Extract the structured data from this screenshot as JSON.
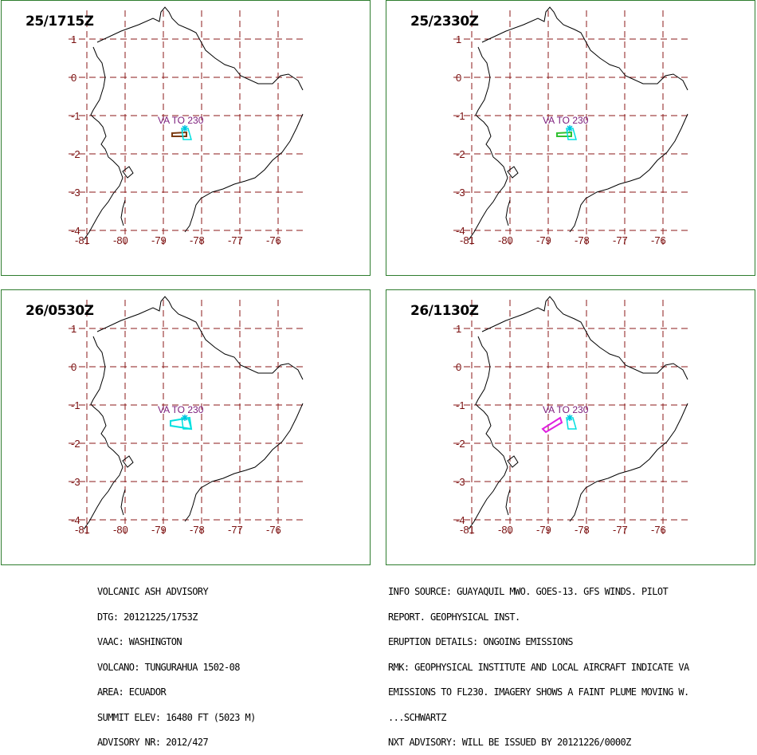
{
  "panels": [
    {
      "time": "25/1715Z",
      "plume_colors": [
        "#7a3a10",
        "#00e0e0"
      ],
      "va_label": "VA TO 230",
      "plume": "short-west"
    },
    {
      "time": "25/2330Z",
      "plume_colors": [
        "#30c030",
        "#00e0e0"
      ],
      "va_label": "VA TO 230",
      "plume": "short-west"
    },
    {
      "time": "26/0530Z",
      "plume_colors": [
        "#00e0e0",
        "#00e0e0"
      ],
      "va_label": "VA TO 230",
      "plume": "west"
    },
    {
      "time": "26/1130Z",
      "plume_colors": [
        "#e020e0",
        "#00e0e0"
      ],
      "va_label": "VA TO 230",
      "plume": "southwest"
    }
  ],
  "map": {
    "lat_labels": [
      "1",
      "0",
      "-1",
      "-2",
      "-3",
      "-4"
    ],
    "lon_labels": [
      "-81",
      "-80",
      "-79",
      "-78",
      "-77",
      "-76"
    ],
    "grid_color": "#8b1a1a",
    "coast_color": "#000000",
    "border_color": "#2e7d2e"
  },
  "advisory_left": {
    "lines": [
      "VOLCANIC ASH ADVISORY",
      "DTG: 20121225/1753Z",
      "VAAC: WASHINGTON",
      "VOLCANO: TUNGURAHUA 1502-08",
      "AREA: ECUADOR",
      "SUMMIT ELEV: 16480 FT (5023 M)",
      "ADVISORY NR: 2012/427"
    ]
  },
  "advisory_right": {
    "lines": [
      "INFO SOURCE: GUAYAQUIL MWO. GOES-13. GFS WINDS. PILOT",
      "REPORT. GEOPHYSICAL INST.",
      "ERUPTION DETAILS: ONGOING EMISSIONS",
      "RMK: GEOPHYSICAL INSTITUTE AND LOCAL AIRCRAFT INDICATE VA",
      "EMISSIONS TO FL230. IMAGERY SHOWS A FAINT PLUME MOVING W.",
      "...SCHWARTZ",
      "NXT ADVISORY: WILL BE ISSUED BY 20121226/0000Z"
    ]
  }
}
